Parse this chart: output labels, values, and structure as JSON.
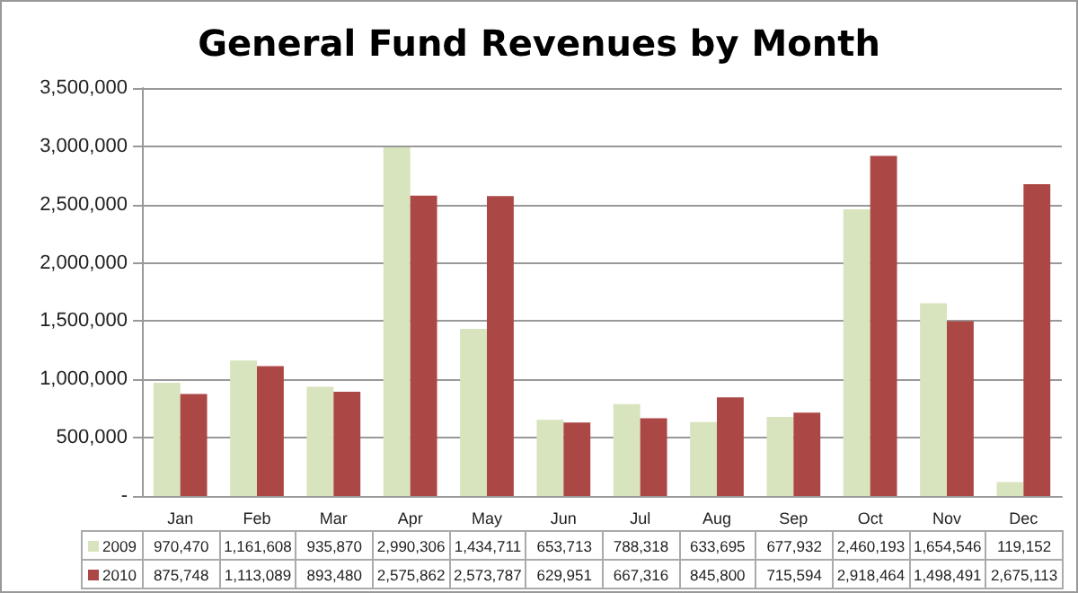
{
  "chart_data": {
    "type": "bar",
    "title": "General Fund Revenues by Month",
    "categories": [
      "Jan",
      "Feb",
      "Mar",
      "Apr",
      "May",
      "Jun",
      "Jul",
      "Aug",
      "Sep",
      "Oct",
      "Nov",
      "Dec"
    ],
    "series": [
      {
        "name": "2009",
        "color": "#d7e4bd",
        "values": [
          970470,
          1161608,
          935870,
          2990306,
          1434711,
          653713,
          788318,
          633695,
          677932,
          2460193,
          1654546,
          119152
        ],
        "value_labels": [
          "970,470",
          "1,161,608",
          "935,870",
          "2,990,306",
          "1,434,711",
          "653,713",
          "788,318",
          "633,695",
          "677,932",
          "2,460,193",
          "1,654,546",
          "119,152"
        ]
      },
      {
        "name": "2010",
        "color": "#ab4745",
        "values": [
          875748,
          1113089,
          893480,
          2575862,
          2573787,
          629951,
          667316,
          845800,
          715594,
          2918464,
          1498491,
          2675113
        ],
        "value_labels": [
          "875,748",
          "1,113,089",
          "893,480",
          "2,575,862",
          "2,573,787",
          "629,951",
          "667,316",
          "845,800",
          "715,594",
          "2,918,464",
          "1,498,491",
          "2,675,113"
        ]
      }
    ],
    "ylim": [
      0,
      3500000
    ],
    "yticks": [
      {
        "value": 0,
        "label": "-"
      },
      {
        "value": 500000,
        "label": "500,000"
      },
      {
        "value": 1000000,
        "label": "1,000,000"
      },
      {
        "value": 1500000,
        "label": "1,500,000"
      },
      {
        "value": 2000000,
        "label": "2,000,000"
      },
      {
        "value": 2500000,
        "label": "2,500,000"
      },
      {
        "value": 3000000,
        "label": "3,000,000"
      },
      {
        "value": 3500000,
        "label": "3,500,000"
      }
    ],
    "grid": "y",
    "legend": "bottom left"
  }
}
